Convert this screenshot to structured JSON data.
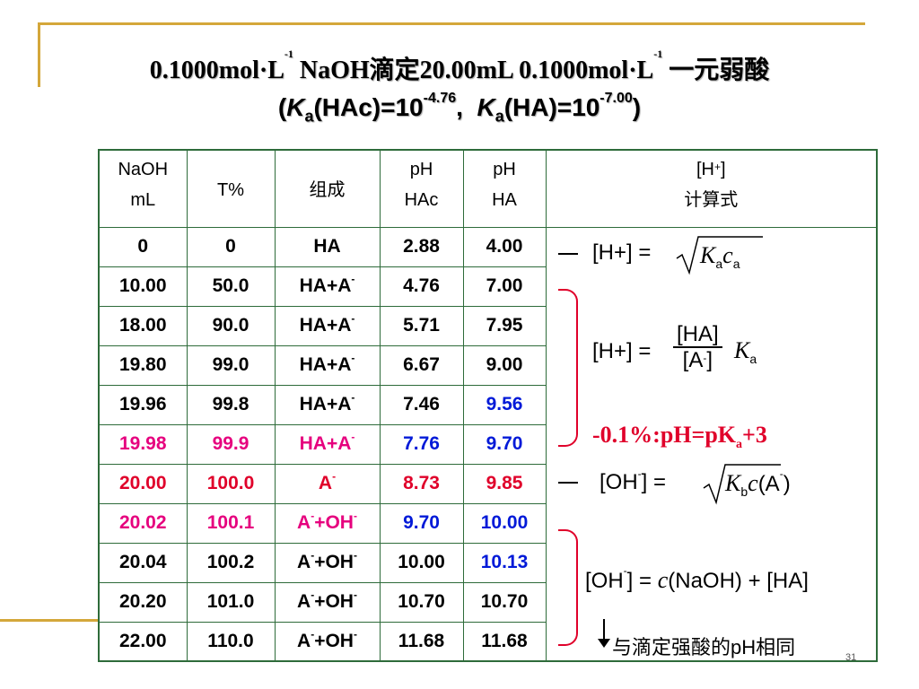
{
  "title_line1": "0.1000mol·L-1 NaOH滴定20.00mL 0.1000mol·L-1 一元弱酸",
  "title_line2_parts": {
    "k": "K",
    "a": "a",
    "hac": "(HAc)=10",
    "hac_exp": "-4.76",
    "sep": ",",
    "ha": "(HA)=10",
    "ha_exp": "-7.00",
    "open": "(",
    "close": ")"
  },
  "headers": {
    "naoh1": "NaOH",
    "naoh2": "mL",
    "t": "T%",
    "comp": "组成",
    "ph1a": "pH",
    "ph1b": "HAc",
    "ph2a": "pH",
    "ph2b": "HA",
    "h1": "[H+]",
    "h2": "计算式"
  },
  "rows": [
    {
      "naoh": "0",
      "t": "0",
      "comp": "HA",
      "phHAc": "2.88",
      "phHA": "4.00"
    },
    {
      "naoh": "10.00",
      "t": "50.0",
      "comp": "HA+A-",
      "phHAc": "4.76",
      "phHA": "7.00"
    },
    {
      "naoh": "18.00",
      "t": "90.0",
      "comp": "HA+A-",
      "phHAc": "5.71",
      "phHA": "7.95"
    },
    {
      "naoh": "19.80",
      "t": "99.0",
      "comp": "HA+A-",
      "phHAc": "6.67",
      "phHA": "9.00"
    },
    {
      "naoh": "19.96",
      "t": "99.8",
      "comp": "HA+A-",
      "phHAc": "7.46",
      "phHA": "9.56"
    },
    {
      "naoh": "19.98",
      "t": "99.9",
      "comp": "HA+A-",
      "phHAc": "7.76",
      "phHA": "9.70"
    },
    {
      "naoh": "20.00",
      "t": "100.0",
      "comp": "A-",
      "phHAc": "8.73",
      "phHA": "9.85"
    },
    {
      "naoh": "20.02",
      "t": "100.1",
      "comp": "A-+OH-",
      "phHAc": "9.70",
      "phHA": "10.00"
    },
    {
      "naoh": "20.04",
      "t": "100.2",
      "comp": "A-+OH-",
      "phHAc": "10.00",
      "phHA": "10.13"
    },
    {
      "naoh": "20.20",
      "t": "101.0",
      "comp": "A-+OH-",
      "phHAc": "10.70",
      "phHA": "10.70"
    },
    {
      "naoh": "22.00",
      "t": "110.0",
      "comp": "A-+OH-",
      "phHAc": "11.68",
      "phHA": "11.68"
    }
  ],
  "formulas": {
    "f1_lhs": "[H+] =",
    "f1_k": "K",
    "f1_sub_a": "a",
    "f1_c": "c",
    "f1_sub_a2": "a",
    "f2_lhs": "[H+] =",
    "f2_num": "[HA]",
    "f2_den": "[A-]",
    "f2_k": "K",
    "f2_sub": "a",
    "f3": "-0.1%:pH=pK",
    "f3_sub": "a",
    "f3_tail": "+3",
    "f4_lhs": "[OH-] =",
    "f4_k": "K",
    "f4_sub": "b",
    "f4_c": "c",
    "f4_tail": "(A-)",
    "f5_lhs": "[OH-] =",
    "f5_c": "c",
    "f5_mid": "(NaOH) + [HA]",
    "f6": "与滴定强酸的pH相同"
  },
  "page_number": "31",
  "colors": {
    "red": "#e0002a",
    "pink": "#e6007e",
    "blue": "#0019d8",
    "border": "#2e6b3a",
    "gold": "#d4a73a"
  }
}
